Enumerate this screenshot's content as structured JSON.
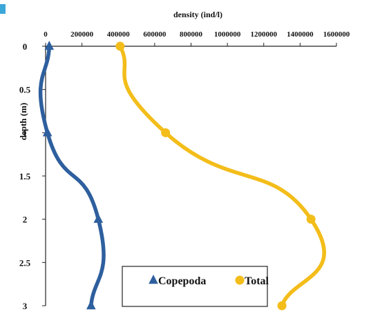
{
  "chart_data": {
    "type": "line",
    "orientation": "depth-profile",
    "title": "",
    "xlabel": "density (ind/l)",
    "ylabel": "depth (m)",
    "xlim": [
      0,
      1600000
    ],
    "ylim": [
      0,
      3
    ],
    "y_inverted": true,
    "x_axis_position": "top",
    "x_ticks": [
      0,
      200000,
      400000,
      600000,
      800000,
      1000000,
      1200000,
      1400000,
      1600000
    ],
    "x_tick_labels": [
      "0",
      "200000",
      "400000",
      "600000",
      "800000",
      "1000000",
      "1200000",
      "1400000",
      "1600000"
    ],
    "y_ticks": [
      0,
      0.5,
      1,
      1.5,
      2,
      2.5,
      3
    ],
    "y_tick_labels": [
      "0",
      "0.5",
      "1",
      "1.5",
      "2",
      "2.5",
      "3"
    ],
    "grid": false,
    "legend_position": "bottom-right",
    "series": [
      {
        "name": "Copepoda",
        "marker": "triangle",
        "color": "#2e5f9e",
        "points": [
          {
            "depth": 0,
            "density": 20000
          },
          {
            "depth": 1,
            "density": 10000
          },
          {
            "depth": 2,
            "density": 290000
          },
          {
            "depth": 3,
            "density": 250000
          }
        ]
      },
      {
        "name": "Total",
        "marker": "circle",
        "color": "#f3bd1a",
        "points": [
          {
            "depth": 0,
            "density": 410000
          },
          {
            "depth": 1,
            "density": 660000
          },
          {
            "depth": 2,
            "density": 1460000
          },
          {
            "depth": 3,
            "density": 1300000
          }
        ]
      }
    ]
  }
}
